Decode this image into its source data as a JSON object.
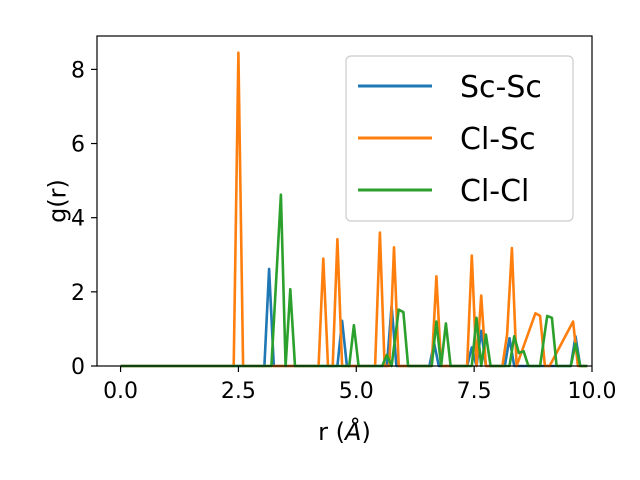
{
  "chart_data": {
    "type": "line",
    "xlabel": "r (Å)",
    "xlabel_prefix": "r (",
    "xlabel_unit": "Å",
    "xlabel_suffix": ")",
    "ylabel": "g(r)",
    "xlim": [
      -0.5,
      10.0
    ],
    "ylim": [
      0,
      8.9
    ],
    "xticks": [
      0.0,
      2.5,
      5.0,
      7.5,
      10.0
    ],
    "xtick_labels": [
      "0.0",
      "2.5",
      "5.0",
      "7.5",
      "10.0"
    ],
    "yticks": [
      0,
      2,
      4,
      6,
      8
    ],
    "ytick_labels": [
      "0",
      "2",
      "4",
      "6",
      "8"
    ],
    "grid": false,
    "legend_position": "top-right",
    "series": [
      {
        "name": "Sc-Sc",
        "color": "#1f77b4",
        "x": [
          0,
          3.05,
          3.15,
          3.25,
          3.35,
          4.6,
          4.7,
          4.8,
          5.65,
          5.75,
          5.85,
          5.95,
          6.55,
          6.65,
          6.75,
          6.85,
          7.35,
          7.45,
          7.55,
          7.65,
          7.75,
          7.85,
          8.15,
          8.25,
          8.35,
          8.45,
          9.55,
          9.65,
          9.75,
          9.9
        ],
        "y": [
          0,
          0,
          2.62,
          0,
          0,
          0,
          1.22,
          0,
          0,
          1.62,
          0,
          0,
          0,
          0.62,
          0,
          0,
          0,
          0.5,
          0,
          0.95,
          0,
          0,
          0,
          0.75,
          0,
          0,
          0,
          0.8,
          0,
          0
        ]
      },
      {
        "name": "Cl-Sc",
        "color": "#ff7f0e",
        "x": [
          0,
          2.4,
          2.5,
          2.6,
          4.2,
          4.3,
          4.4,
          4.5,
          4.6,
          4.7,
          5.4,
          5.5,
          5.6,
          5.7,
          5.8,
          5.9,
          6.6,
          6.7,
          6.8,
          6.9,
          7.35,
          7.45,
          7.55,
          7.65,
          7.75,
          8.1,
          8.2,
          8.3,
          8.4,
          8.8,
          8.9,
          9.0,
          9.1,
          9.6,
          9.7,
          9.8,
          9.9
        ],
        "y": [
          0,
          0,
          8.45,
          0,
          0,
          2.9,
          0,
          0,
          3.42,
          0,
          0,
          3.6,
          0,
          0,
          3.2,
          0,
          0,
          2.42,
          0,
          0,
          0,
          2.98,
          0,
          1.9,
          0,
          0,
          0.85,
          3.18,
          0,
          1.42,
          1.35,
          0,
          0,
          1.2,
          0,
          0,
          0
        ]
      },
      {
        "name": "Cl-Cl",
        "color": "#2ca02c",
        "x": [
          0,
          3.2,
          3.4,
          3.5,
          3.6,
          3.7,
          4.85,
          4.95,
          5.05,
          5.55,
          5.65,
          5.75,
          5.9,
          6.0,
          6.1,
          6.2,
          6.6,
          6.7,
          6.8,
          6.9,
          7.0,
          7.45,
          7.55,
          7.65,
          7.75,
          7.85,
          8.25,
          8.35,
          8.45,
          8.55,
          8.65,
          8.9,
          9.05,
          9.15,
          9.25,
          9.55,
          9.65,
          9.75,
          9.9
        ],
        "y": [
          0,
          0,
          4.62,
          0,
          2.07,
          0,
          0,
          1.1,
          0,
          0,
          0.3,
          0,
          1.52,
          1.45,
          0,
          0,
          0,
          1.2,
          0,
          1.15,
          0,
          0,
          1.3,
          0,
          0.85,
          0,
          0,
          0.8,
          0.35,
          0.4,
          0,
          0,
          1.35,
          1.3,
          0,
          0,
          0.6,
          0,
          0
        ]
      }
    ]
  }
}
